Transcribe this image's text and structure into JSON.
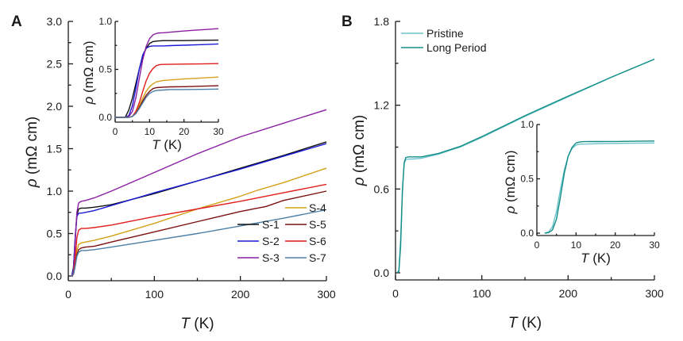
{
  "chart_data": [
    {
      "panel": "A",
      "type": "line",
      "title": "",
      "xlabel_italic": "T",
      "xlabel_unit": "(K)",
      "ylabel_italic": "ρ",
      "ylabel_unit": "(mΩ cm)",
      "xlim": [
        0,
        300
      ],
      "ylim": [
        0,
        3.0
      ],
      "xticks": [
        0,
        100,
        200,
        300
      ],
      "xtick_labels": [
        "0",
        "100",
        "200",
        "300"
      ],
      "yticks": [
        0,
        0.5,
        1.0,
        1.5,
        2.0,
        2.5,
        3.0
      ],
      "ytick_labels": [
        "0.0",
        "0.5",
        "1.0",
        "1.5",
        "2.0",
        "2.5",
        "3.0"
      ],
      "legend_position": "bottom-right",
      "series": [
        {
          "name": "S-1",
          "color": "#111111",
          "x": [
            2,
            4,
            6,
            8,
            10,
            12,
            15,
            20,
            30,
            50,
            100,
            150,
            200,
            250,
            300
          ],
          "y": [
            0,
            0,
            0.1,
            0.45,
            0.72,
            0.79,
            0.8,
            0.8,
            0.81,
            0.84,
            0.97,
            1.12,
            1.27,
            1.42,
            1.58
          ]
        },
        {
          "name": "S-2",
          "color": "#1a1ad6",
          "x": [
            2,
            4,
            6,
            8,
            10,
            12,
            15,
            20,
            30,
            50,
            100,
            150,
            200,
            250,
            300
          ],
          "y": [
            0,
            0,
            0.08,
            0.45,
            0.7,
            0.74,
            0.74,
            0.75,
            0.77,
            0.83,
            0.98,
            1.12,
            1.26,
            1.41,
            1.56
          ]
        },
        {
          "name": "S-3",
          "color": "#8a1fa3",
          "x": [
            2,
            4,
            6,
            8,
            10,
            12,
            15,
            20,
            30,
            50,
            100,
            150,
            200,
            250,
            300
          ],
          "y": [
            0,
            0,
            0.05,
            0.4,
            0.75,
            0.86,
            0.88,
            0.89,
            0.92,
            1.0,
            1.22,
            1.44,
            1.64,
            1.8,
            1.96
          ]
        },
        {
          "name": "S-4",
          "color": "#d4a017",
          "x": [
            2,
            4,
            6,
            8,
            10,
            12,
            15,
            20,
            30,
            50,
            100,
            150,
            200,
            220,
            250,
            300
          ],
          "y": [
            0,
            0,
            0.02,
            0.15,
            0.3,
            0.37,
            0.39,
            0.4,
            0.42,
            0.47,
            0.62,
            0.79,
            0.94,
            1.01,
            1.1,
            1.27
          ]
        },
        {
          "name": "S-5",
          "color": "#7a1010",
          "x": [
            2,
            4,
            6,
            8,
            10,
            12,
            15,
            20,
            30,
            50,
            100,
            150,
            200,
            230,
            250,
            300
          ],
          "y": [
            0,
            0,
            0.02,
            0.12,
            0.25,
            0.31,
            0.33,
            0.34,
            0.35,
            0.4,
            0.52,
            0.64,
            0.76,
            0.82,
            0.89,
            1.0
          ]
        },
        {
          "name": "S-6",
          "color": "#e01c1c",
          "x": [
            2,
            4,
            6,
            8,
            10,
            12,
            15,
            20,
            30,
            50,
            100,
            150,
            200,
            250,
            300
          ],
          "y": [
            0,
            0,
            0.02,
            0.2,
            0.45,
            0.54,
            0.56,
            0.56,
            0.57,
            0.6,
            0.7,
            0.79,
            0.88,
            0.98,
            1.08
          ]
        },
        {
          "name": "S-7",
          "color": "#4a7fa8",
          "x": [
            2,
            4,
            6,
            8,
            10,
            12,
            15,
            20,
            30,
            50,
            100,
            150,
            200,
            250,
            300
          ],
          "y": [
            0,
            0,
            0.02,
            0.12,
            0.23,
            0.28,
            0.3,
            0.3,
            0.31,
            0.34,
            0.42,
            0.5,
            0.59,
            0.68,
            0.78
          ]
        }
      ],
      "inset": {
        "xlim": [
          0,
          30
        ],
        "ylim": [
          0,
          1.0
        ],
        "xticks": [
          0,
          10,
          20,
          30
        ],
        "xtick_labels": [
          "0",
          "10",
          "20",
          "30"
        ],
        "yticks": [
          0,
          0.5,
          1.0
        ],
        "ytick_labels": [
          "0.0",
          "0.5",
          "1.0"
        ],
        "xlabel_italic": "T",
        "xlabel_unit": "(K)",
        "ylabel_italic": "ρ",
        "ylabel_unit": "(mΩ cm)",
        "series": [
          {
            "name": "S-1",
            "color": "#111111",
            "x": [
              0,
              2,
              3,
              4,
              5,
              6,
              7,
              8,
              9,
              10,
              11,
              12,
              14,
              16,
              20,
              25,
              30
            ],
            "y": [
              0,
              0,
              0.005,
              0.08,
              0.2,
              0.35,
              0.5,
              0.63,
              0.72,
              0.77,
              0.79,
              0.795,
              0.8,
              0.8,
              0.8,
              0.803,
              0.805
            ]
          },
          {
            "name": "S-2",
            "color": "#1a1ad6",
            "x": [
              0,
              3,
              4,
              5,
              6,
              7,
              8,
              9,
              10,
              11,
              12,
              14,
              16,
              20,
              25,
              30
            ],
            "y": [
              0,
              0,
              0.02,
              0.12,
              0.3,
              0.5,
              0.65,
              0.72,
              0.74,
              0.745,
              0.745,
              0.745,
              0.748,
              0.752,
              0.758,
              0.765
            ]
          },
          {
            "name": "S-3",
            "color": "#8a1fa3",
            "x": [
              0,
              3,
              4,
              5,
              6,
              7,
              8,
              9,
              10,
              11,
              12,
              13,
              14,
              16,
              20,
              25,
              30
            ],
            "y": [
              0,
              0,
              0.01,
              0.06,
              0.2,
              0.4,
              0.6,
              0.74,
              0.82,
              0.86,
              0.875,
              0.88,
              0.882,
              0.888,
              0.9,
              0.912,
              0.925
            ]
          },
          {
            "name": "S-4",
            "color": "#d4a017",
            "x": [
              0,
              4,
              5,
              6,
              7,
              8,
              9,
              10,
              11,
              12,
              14,
              16,
              20,
              25,
              30
            ],
            "y": [
              0,
              0,
              0.01,
              0.05,
              0.12,
              0.2,
              0.27,
              0.32,
              0.35,
              0.37,
              0.385,
              0.39,
              0.4,
              0.41,
              0.42
            ]
          },
          {
            "name": "S-5",
            "color": "#7a1010",
            "x": [
              0,
              4,
              5,
              6,
              7,
              8,
              9,
              10,
              11,
              12,
              14,
              16,
              20,
              25,
              30
            ],
            "y": [
              0,
              0,
              0.01,
              0.04,
              0.1,
              0.17,
              0.23,
              0.27,
              0.3,
              0.31,
              0.315,
              0.318,
              0.32,
              0.325,
              0.33
            ]
          },
          {
            "name": "S-6",
            "color": "#e01c1c",
            "x": [
              0,
              4,
              5,
              6,
              7,
              8,
              9,
              10,
              11,
              12,
              13,
              14,
              16,
              20,
              25,
              30
            ],
            "y": [
              0,
              0,
              0.01,
              0.06,
              0.15,
              0.27,
              0.38,
              0.46,
              0.51,
              0.54,
              0.55,
              0.552,
              0.553,
              0.555,
              0.557,
              0.56
            ]
          },
          {
            "name": "S-7",
            "color": "#4a7fa8",
            "x": [
              0,
              4,
              5,
              6,
              7,
              8,
              9,
              10,
              11,
              12,
              14,
              16,
              20,
              25,
              30
            ],
            "y": [
              0,
              0,
              0.01,
              0.04,
              0.09,
              0.15,
              0.21,
              0.25,
              0.27,
              0.28,
              0.285,
              0.29,
              0.29,
              0.292,
              0.295
            ]
          }
        ]
      }
    },
    {
      "panel": "B",
      "type": "line",
      "title": "",
      "xlabel_italic": "T",
      "xlabel_unit": "(K)",
      "ylabel_italic": "ρ",
      "ylabel_unit": "(mΩ cm)",
      "xlim": [
        0,
        300
      ],
      "ylim": [
        0,
        1.8
      ],
      "xticks": [
        0,
        100,
        200,
        300
      ],
      "xtick_labels": [
        "0",
        "100",
        "200",
        "300"
      ],
      "yticks": [
        0,
        0.6,
        1.2,
        1.8
      ],
      "ytick_labels": [
        "0.0",
        "0.6",
        "1.2",
        "1.8"
      ],
      "legend_position": "top-left",
      "series": [
        {
          "name": "Pristine",
          "color": "#6cc4cc",
          "x": [
            2,
            4,
            6,
            8,
            10,
            12,
            15,
            20,
            30,
            50,
            75,
            100,
            150,
            200,
            250,
            300
          ],
          "y": [
            0,
            0.02,
            0.25,
            0.6,
            0.78,
            0.81,
            0.815,
            0.815,
            0.82,
            0.85,
            0.9,
            0.97,
            1.12,
            1.26,
            1.4,
            1.53
          ]
        },
        {
          "name": "Long Period",
          "color": "#138d87",
          "x": [
            2,
            4,
            6,
            8,
            10,
            12,
            15,
            20,
            30,
            50,
            75,
            100,
            150,
            200,
            250,
            300
          ],
          "y": [
            0,
            0.01,
            0.2,
            0.58,
            0.79,
            0.825,
            0.83,
            0.83,
            0.83,
            0.855,
            0.905,
            0.975,
            1.125,
            1.265,
            1.4,
            1.53
          ]
        }
      ],
      "inset": {
        "xlim": [
          0,
          30
        ],
        "ylim": [
          0,
          1.0
        ],
        "xticks": [
          0,
          10,
          20,
          30
        ],
        "xtick_labels": [
          "0",
          "10",
          "20",
          "30"
        ],
        "yticks": [
          0,
          0.5,
          1.0
        ],
        "ytick_labels": [
          "0.0",
          "0.5",
          "1.0"
        ],
        "xlabel_italic": "T",
        "xlabel_unit": "(K)",
        "ylabel_italic": "ρ",
        "ylabel_unit": "(mΩ cm)",
        "series": [
          {
            "name": "Pristine",
            "color": "#6cc4cc",
            "x": [
              2,
              3,
              4,
              5,
              6,
              7,
              8,
              9,
              10,
              11,
              12,
              14,
              16,
              20,
              25,
              30
            ],
            "y": [
              0,
              0.01,
              0.06,
              0.2,
              0.4,
              0.58,
              0.71,
              0.78,
              0.81,
              0.82,
              0.82,
              0.822,
              0.824,
              0.826,
              0.828,
              0.83
            ]
          },
          {
            "name": "Long Period",
            "color": "#138d87",
            "x": [
              2,
              3,
              4,
              5,
              6,
              7,
              8,
              9,
              10,
              11,
              12,
              14,
              16,
              20,
              25,
              30
            ],
            "y": [
              0,
              0.005,
              0.03,
              0.13,
              0.33,
              0.55,
              0.71,
              0.79,
              0.83,
              0.84,
              0.842,
              0.843,
              0.843,
              0.844,
              0.846,
              0.848
            ]
          }
        ]
      }
    }
  ]
}
